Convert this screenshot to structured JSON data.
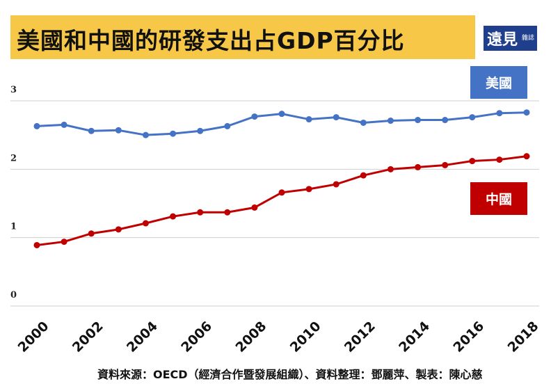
{
  "title": "美國和中國的研發支出占GDP百分比",
  "logo": {
    "main": "遠見",
    "sub": "雜誌"
  },
  "footer": "資料來源：OECD（經濟合作暨發展組織）、資料整理：鄧麗萍、製表：陳心慈",
  "chart_data": {
    "type": "line",
    "title": "美國和中國的研發支出占GDP百分比",
    "x": [
      2000,
      2001,
      2002,
      2003,
      2004,
      2005,
      2006,
      2007,
      2008,
      2009,
      2010,
      2011,
      2012,
      2013,
      2014,
      2015,
      2016,
      2017,
      2018
    ],
    "x_tick_labels": [
      "2000",
      "2002",
      "2004",
      "2006",
      "2008",
      "2010",
      "2012",
      "2014",
      "2016",
      "2018"
    ],
    "y_tick_labels": [
      "0",
      "1",
      "2",
      "3"
    ],
    "ylim": [
      0,
      3
    ],
    "grid": true,
    "legend_placement": "right, labels beside lines",
    "series": [
      {
        "name": "美國",
        "color": "#4472c4",
        "values": [
          2.63,
          2.65,
          2.56,
          2.57,
          2.5,
          2.52,
          2.56,
          2.63,
          2.77,
          2.81,
          2.73,
          2.76,
          2.68,
          2.71,
          2.72,
          2.72,
          2.76,
          2.82,
          2.83
        ]
      },
      {
        "name": "中國",
        "color": "#c00000",
        "values": [
          0.89,
          0.94,
          1.06,
          1.12,
          1.21,
          1.31,
          1.37,
          1.37,
          1.44,
          1.66,
          1.71,
          1.78,
          1.91,
          2.0,
          2.03,
          2.06,
          2.12,
          2.14,
          2.19
        ]
      }
    ]
  }
}
